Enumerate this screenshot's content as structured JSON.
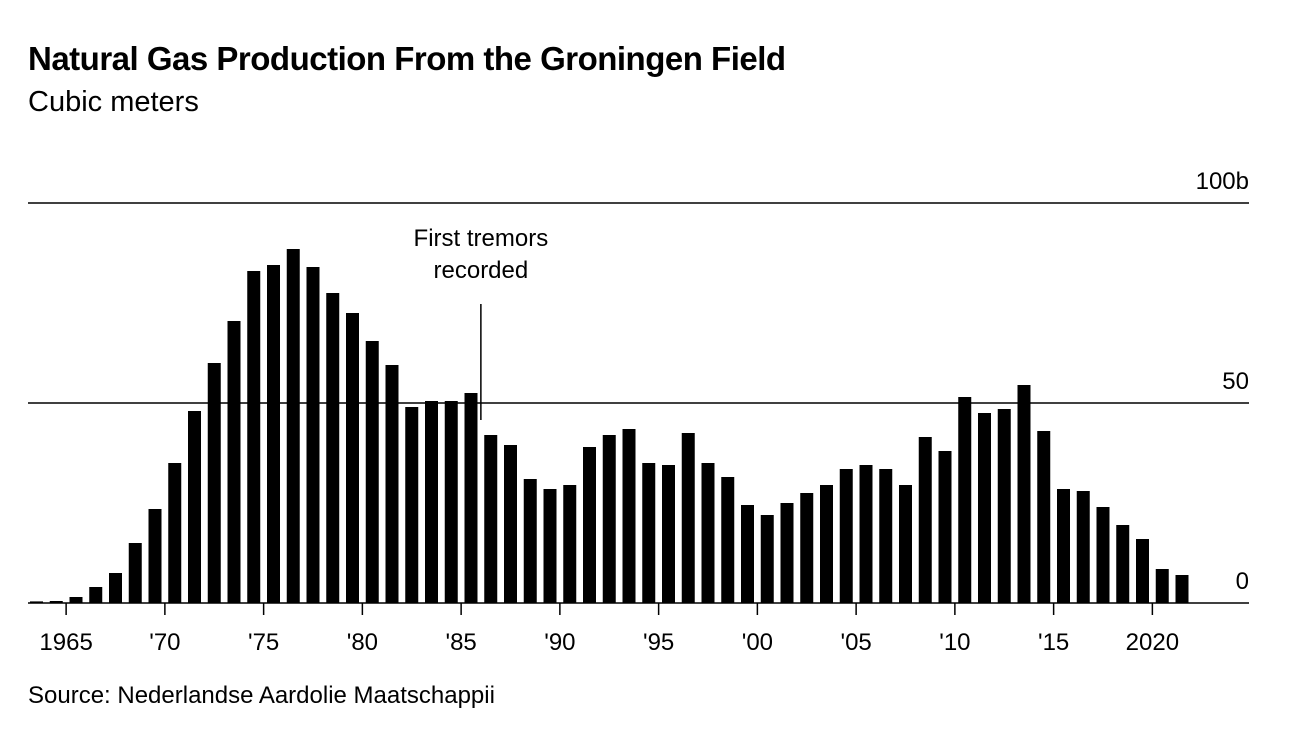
{
  "title": "Natural Gas Production From the Groningen Field",
  "subtitle": "Cubic meters",
  "source": "Source: Nederlandse Aardolie Maatschappii",
  "chart_data": {
    "type": "bar",
    "title": "Natural Gas Production From the Groningen Field",
    "subtitle": "Cubic meters",
    "xlabel": "",
    "ylabel": "",
    "ylim": [
      0,
      100
    ],
    "y_ticks": [
      {
        "value": 0,
        "label": "0"
      },
      {
        "value": 50,
        "label": "50"
      },
      {
        "value": 100,
        "label": "100b"
      }
    ],
    "x_ticks": [
      {
        "year": 1965,
        "label": "1965"
      },
      {
        "year": 1970,
        "label": "'70"
      },
      {
        "year": 1975,
        "label": "'75"
      },
      {
        "year": 1980,
        "label": "'80"
      },
      {
        "year": 1985,
        "label": "'85"
      },
      {
        "year": 1990,
        "label": "'90"
      },
      {
        "year": 1995,
        "label": "'95"
      },
      {
        "year": 2000,
        "label": "'00"
      },
      {
        "year": 2005,
        "label": "'05"
      },
      {
        "year": 2010,
        "label": "'10"
      },
      {
        "year": 2015,
        "label": "'15"
      },
      {
        "year": 2020,
        "label": "2020"
      }
    ],
    "grid": true,
    "bar_color": "#000000",
    "annotation": {
      "text_lines": [
        "First tremors",
        "recorded"
      ],
      "year": 1986
    },
    "categories": [
      1963,
      1964,
      1965,
      1966,
      1967,
      1968,
      1969,
      1970,
      1971,
      1972,
      1973,
      1974,
      1975,
      1976,
      1977,
      1978,
      1979,
      1980,
      1981,
      1982,
      1983,
      1984,
      1985,
      1986,
      1987,
      1988,
      1989,
      1990,
      1991,
      1992,
      1993,
      1994,
      1995,
      1996,
      1997,
      1998,
      1999,
      2000,
      2001,
      2002,
      2003,
      2004,
      2005,
      2006,
      2007,
      2008,
      2009,
      2010,
      2011,
      2012,
      2013,
      2014,
      2015,
      2016,
      2017,
      2018,
      2019,
      2020,
      2021
    ],
    "values": [
      0.4,
      0.5,
      1.5,
      4,
      7.5,
      15,
      23.5,
      35,
      48,
      60,
      70.5,
      83,
      84.5,
      88.5,
      84,
      77.5,
      72.5,
      65.5,
      59.5,
      49,
      50.5,
      50.5,
      52.5,
      42,
      39.5,
      31,
      28.5,
      29.5,
      39,
      42,
      43.5,
      35,
      34.5,
      42.5,
      35,
      31.5,
      24.5,
      22,
      25,
      27.5,
      29.5,
      33.5,
      34.5,
      33.5,
      29.5,
      41.5,
      38,
      51.5,
      47.5,
      48.5,
      54.5,
      43,
      28.5,
      28,
      24,
      19.5,
      16,
      8.5,
      7
    ]
  }
}
